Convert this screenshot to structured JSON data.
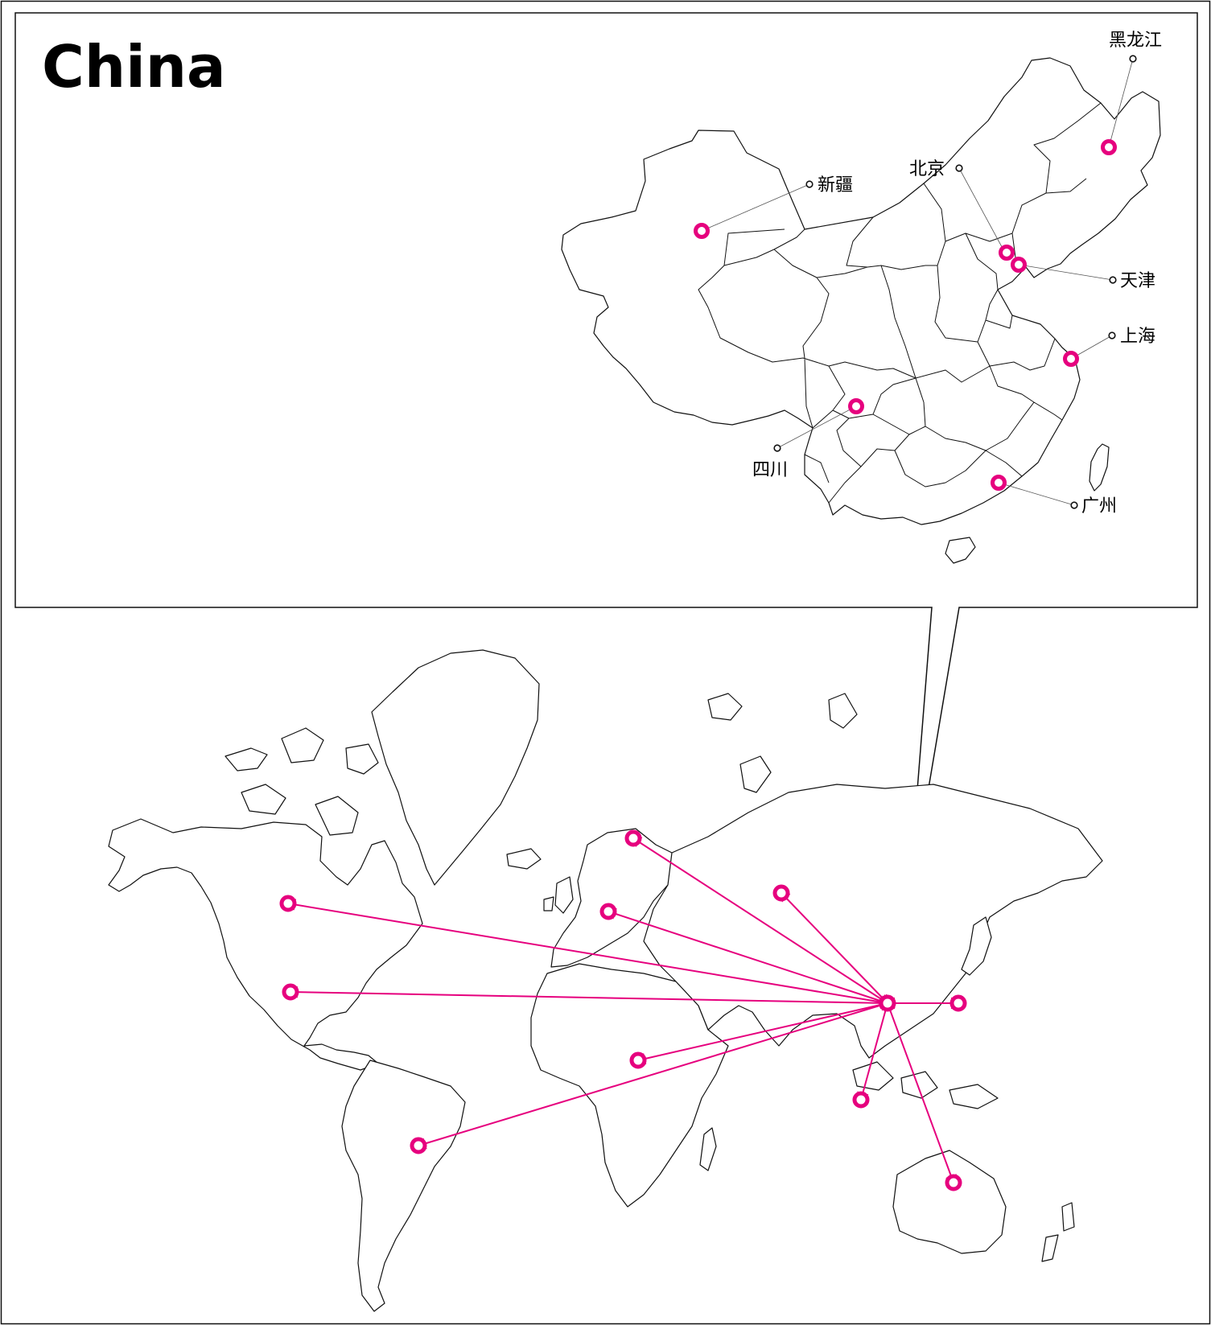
{
  "map": {
    "title": "China",
    "colors": {
      "accent": "#e6007e",
      "outline": "#111111",
      "background": "#ffffff"
    },
    "provinces": [
      {
        "id": "heilongjiang",
        "label": "黑龙江"
      },
      {
        "id": "xinjiang",
        "label": "新疆"
      },
      {
        "id": "beijing",
        "label": "北京"
      },
      {
        "id": "tianjin",
        "label": "天津"
      },
      {
        "id": "shanghai",
        "label": "上海"
      },
      {
        "id": "sichuan",
        "label": "四川"
      },
      {
        "id": "guangzhou",
        "label": "广州"
      }
    ],
    "world_destinations": [
      "canada",
      "united-states",
      "brazil",
      "finland",
      "germany",
      "russia",
      "central-africa",
      "japan",
      "singapore",
      "australia"
    ]
  }
}
